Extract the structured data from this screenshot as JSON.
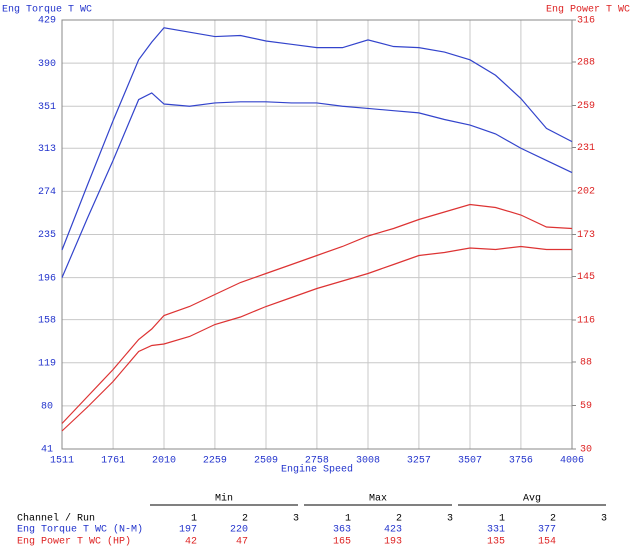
{
  "chart_data": {
    "type": "line",
    "y_label": "Eng Torque T WC",
    "y2_label": "Eng Power T WC",
    "x_label": "Engine Speed",
    "x": [
      1511,
      1636,
      1761,
      1886,
      1950,
      2010,
      2135,
      2259,
      2384,
      2509,
      2634,
      2758,
      2883,
      3008,
      3133,
      3257,
      3382,
      3507,
      3632,
      3756,
      3881,
      4006
    ],
    "xlim": [
      1511,
      4006
    ],
    "xticks": [
      1511,
      1761,
      2010,
      2259,
      2509,
      2758,
      3008,
      3257,
      3507,
      3756,
      4006
    ],
    "ylim": [
      41,
      429
    ],
    "yticks": [
      41,
      80,
      119,
      158,
      196,
      235,
      274,
      313,
      351,
      390,
      429
    ],
    "y2lim": [
      30,
      316
    ],
    "y2ticks": [
      30,
      59,
      88,
      116,
      145,
      173,
      202,
      231,
      259,
      288,
      316
    ],
    "grid": true,
    "y_color": "#2233cc",
    "y2_color": "#dd2222",
    "series": [
      {
        "color": "#3344cc",
        "values": [
          196,
          250,
          302,
          357,
          363,
          353,
          351,
          354,
          355,
          355,
          354,
          354,
          351,
          349,
          347,
          345,
          339,
          334,
          326,
          313,
          302,
          291
        ]
      },
      {
        "color": "#3344cc",
        "values": [
          221,
          280,
          338,
          393,
          409,
          422,
          418,
          414,
          415,
          410,
          407,
          404,
          404,
          411,
          405,
          404,
          400,
          393,
          379,
          358,
          331,
          319
        ]
      },
      {
        "color": "#dd3333",
        "axis": "y2",
        "values": [
          42,
          58,
          75,
          95,
          99,
          100,
          105,
          113,
          118,
          125,
          131,
          137,
          142,
          147,
          153,
          159,
          161,
          164,
          163,
          165,
          163,
          163
        ]
      },
      {
        "color": "#dd3333",
        "axis": "y2",
        "values": [
          47,
          65,
          83,
          103,
          110,
          119,
          125,
          133,
          141,
          147,
          153,
          159,
          165,
          172,
          177,
          183,
          188,
          193,
          191,
          186,
          178,
          177
        ]
      }
    ]
  },
  "table": {
    "header": "Channel / Run",
    "groups": [
      "Min",
      "Max",
      "Avg"
    ],
    "runs": [
      "1",
      "2",
      "3"
    ],
    "rows": [
      {
        "label": "Eng Torque T WC (N-M)",
        "color": "#2233cc",
        "values": [
          197,
          220,
          363,
          423,
          331,
          377
        ]
      },
      {
        "label": "Eng Power T WC (HP)",
        "color": "#dd2222",
        "values": [
          42,
          47,
          165,
          193,
          135,
          154
        ]
      }
    ]
  }
}
